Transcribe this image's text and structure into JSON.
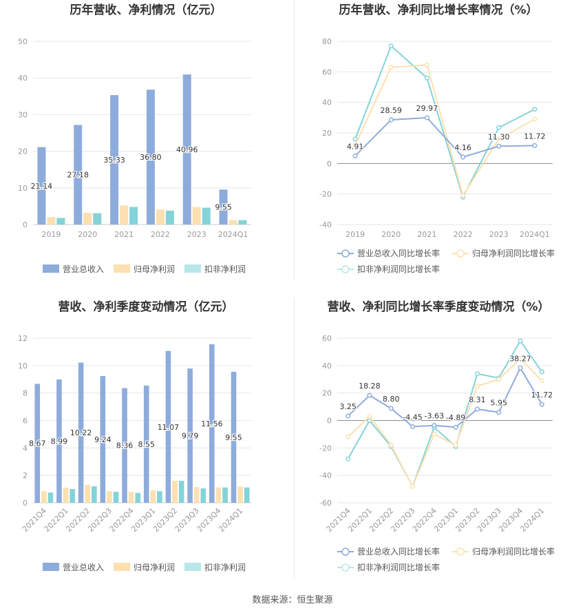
{
  "source_text": "数据来源：恒生聚源",
  "colors": {
    "revenue": "#8eacdb",
    "net_profit": "#fde0b0",
    "deducted_profit": "#84d3d8",
    "grid": "#e6e6e6",
    "axis_text": "#999999",
    "label_text": "#333333",
    "title_text": "#333333"
  },
  "chart_data": [
    {
      "type": "bar",
      "title": "历年营收、净利情况（亿元）",
      "categories": [
        "2019",
        "2020",
        "2021",
        "2022",
        "2023",
        "2024Q1"
      ],
      "ylim": [
        0,
        50
      ],
      "yticks": [
        0,
        10,
        20,
        30,
        40,
        50
      ],
      "legend_position": "bottom",
      "series": [
        {
          "name": "营业总收入",
          "values": [
            21.14,
            27.18,
            35.33,
            36.8,
            40.96,
            9.55
          ],
          "labels": [
            "21.14",
            "27.18",
            "35.33",
            "36.80",
            "40.96",
            "9.55"
          ]
        },
        {
          "name": "归母净利润",
          "values": [
            2.0,
            3.2,
            5.2,
            4.1,
            4.8,
            1.2
          ]
        },
        {
          "name": "扣非净利润",
          "values": [
            1.8,
            3.1,
            4.8,
            3.8,
            4.6,
            1.2
          ]
        }
      ]
    },
    {
      "type": "line",
      "title": "历年营收、净利同比增长率情况（%）",
      "categories": [
        "2019",
        "2020",
        "2021",
        "2022",
        "2023",
        "2024Q1"
      ],
      "ylim": [
        -40,
        80
      ],
      "yticks": [
        -40,
        -20,
        0,
        20,
        40,
        60,
        80
      ],
      "legend_position": "bottom",
      "series": [
        {
          "name": "营业总收入同比增长率",
          "values": [
            4.91,
            28.59,
            29.97,
            4.16,
            11.3,
            11.72
          ],
          "labels": [
            "4.91",
            "28.59",
            "29.97",
            "4.16",
            "11.30",
            "11.72"
          ]
        },
        {
          "name": "归母净利润同比增长率",
          "values": [
            12,
            63,
            64.5,
            -21,
            16,
            29
          ]
        },
        {
          "name": "扣非净利润同比增长率",
          "values": [
            16,
            77,
            56,
            -22,
            23.5,
            35.5
          ]
        }
      ]
    },
    {
      "type": "bar",
      "title": "营收、净利季度变动情况（亿元）",
      "categories": [
        "2021Q4",
        "2022Q1",
        "2022Q2",
        "2022Q3",
        "2022Q4",
        "2023Q1",
        "2023Q2",
        "2023Q3",
        "2023Q4",
        "2024Q1"
      ],
      "ylim": [
        0,
        12
      ],
      "yticks": [
        0,
        2,
        4,
        6,
        8,
        10,
        12
      ],
      "legend_position": "bottom",
      "series": [
        {
          "name": "营业总收入",
          "values": [
            8.67,
            8.99,
            10.22,
            9.24,
            8.36,
            8.55,
            11.07,
            9.79,
            11.56,
            9.55
          ],
          "labels": [
            "8.67",
            "8.99",
            "10.22",
            "9.24",
            "8.36",
            "8.55",
            "11.07",
            "9.79",
            "11.56",
            "9.55"
          ]
        },
        {
          "name": "归母净利润",
          "values": [
            0.85,
            1.1,
            1.3,
            0.85,
            0.8,
            0.9,
            1.6,
            1.15,
            1.12,
            1.18
          ]
        },
        {
          "name": "扣非净利润",
          "values": [
            0.75,
            1.0,
            1.2,
            0.8,
            0.72,
            0.85,
            1.6,
            1.05,
            1.12,
            1.12
          ]
        }
      ]
    },
    {
      "type": "line",
      "title": "营收、净利同比增长率季度变动情况（%）",
      "categories": [
        "2021Q4",
        "2022Q1",
        "2022Q2",
        "2022Q3",
        "2022Q4",
        "2023Q1",
        "2023Q2",
        "2023Q3",
        "2023Q4",
        "2024Q1"
      ],
      "ylim": [
        -60,
        60
      ],
      "yticks": [
        -60,
        -40,
        -20,
        0,
        20,
        40,
        60
      ],
      "legend_position": "bottom",
      "series": [
        {
          "name": "营业总收入同比增长率",
          "values": [
            3.25,
            18.28,
            8.8,
            -4.45,
            -3.63,
            -4.89,
            8.31,
            5.95,
            38.27,
            11.72
          ],
          "labels": [
            "3.25",
            "18.28",
            "8.80",
            "-4.45",
            "-3.63",
            "-4.89",
            "8.31",
            "5.95",
            "38.27",
            "11.72"
          ]
        },
        {
          "name": "归母净利润同比增长率",
          "values": [
            -12,
            3,
            -18,
            -48,
            -10,
            -18,
            25,
            30,
            45,
            29
          ]
        },
        {
          "name": "扣非净利润同比增长率",
          "values": [
            -28,
            0,
            -19,
            -48,
            -5,
            -19,
            34,
            31,
            58,
            35.5
          ]
        }
      ]
    }
  ]
}
